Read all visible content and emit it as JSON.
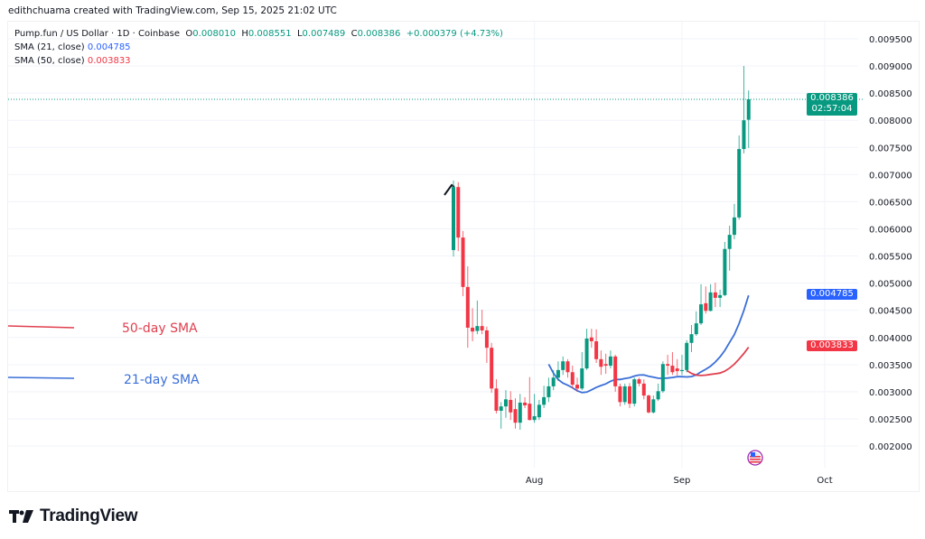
{
  "header": {
    "credit": "edithchuama created with TradingView.com, Sep 15, 2025 21:02 UTC"
  },
  "legend": {
    "symbol": "Pump.fun / US Dollar · 1D · Coinbase",
    "o_label": "O",
    "o": "0.008010",
    "h_label": "H",
    "h": "0.008551",
    "l_label": "L",
    "l": "0.007489",
    "c_label": "C",
    "c": "0.008386",
    "change": "+0.000379 (+4.73%)",
    "sma21_label": "SMA (21, close)",
    "sma21_value": "0.004785",
    "sma50_label": "SMA (50, close)",
    "sma50_value": "0.003833"
  },
  "price_tags": {
    "last": "0.008386",
    "countdown": "02:57:04",
    "sma21": "0.004785",
    "sma50": "0.003833"
  },
  "annotations": {
    "sma50": "50-day SMA",
    "sma21": "21-day SMA"
  },
  "logo": {
    "text": "TradingView"
  },
  "colors": {
    "up": "#089981",
    "down": "#f23645",
    "sma21": "#3b6fd8",
    "sma50": "#e0404f",
    "grid": "#f0f3fa",
    "axis_text": "#131722"
  },
  "chart_data": {
    "type": "candlestick",
    "title": "Pump.fun / US Dollar · 1D · Coinbase",
    "ylim": [
      0.0017,
      0.0099
    ],
    "y_ticks": [
      "0.009500",
      "0.009000",
      "0.008500",
      "0.008000",
      "0.007500",
      "0.007000",
      "0.006500",
      "0.006000",
      "0.005500",
      "0.005000",
      "0.004500",
      "0.004000",
      "0.003500",
      "0.003000",
      "0.002500",
      "0.002000"
    ],
    "x_ticks": [
      {
        "label": "Aug",
        "day": 17
      },
      {
        "label": "Sep",
        "day": 48
      },
      {
        "label": "Oct",
        "day": 78
      }
    ],
    "first_date": "2025-07-15",
    "last_date": "2025-09-15",
    "sma_periods": [
      21,
      50
    ],
    "ohlc": [
      [
        0.00561,
        0.00689,
        0.00549,
        0.00677
      ],
      [
        0.00677,
        0.00686,
        0.00559,
        0.00584
      ],
      [
        0.00584,
        0.00596,
        0.00476,
        0.00493
      ],
      [
        0.00493,
        0.00531,
        0.00381,
        0.00418
      ],
      [
        0.00418,
        0.00454,
        0.00393,
        0.00411
      ],
      [
        0.00412,
        0.00468,
        0.00406,
        0.00421
      ],
      [
        0.00421,
        0.00451,
        0.00406,
        0.00413
      ],
      [
        0.00413,
        0.0042,
        0.00353,
        0.00381
      ],
      [
        0.00381,
        0.0039,
        0.00298,
        0.00306
      ],
      [
        0.00306,
        0.00323,
        0.0026,
        0.00265
      ],
      [
        0.00265,
        0.00281,
        0.00232,
        0.00273
      ],
      [
        0.00273,
        0.00303,
        0.00252,
        0.00286
      ],
      [
        0.00285,
        0.00301,
        0.00248,
        0.00262
      ],
      [
        0.00268,
        0.00288,
        0.00232,
        0.00243
      ],
      [
        0.00243,
        0.00296,
        0.0023,
        0.0028
      ],
      [
        0.0028,
        0.0029,
        0.0027,
        0.00275
      ],
      [
        0.00278,
        0.00327,
        0.00247,
        0.00248
      ],
      [
        0.00248,
        0.00296,
        0.00243,
        0.00255
      ],
      [
        0.00253,
        0.00285,
        0.00248,
        0.00276
      ],
      [
        0.00276,
        0.00311,
        0.0027,
        0.0029
      ],
      [
        0.0029,
        0.00326,
        0.00281,
        0.0031
      ],
      [
        0.0031,
        0.0034,
        0.00303,
        0.00326
      ],
      [
        0.00326,
        0.00356,
        0.0032,
        0.0034
      ],
      [
        0.0034,
        0.00365,
        0.00331,
        0.00356
      ],
      [
        0.00356,
        0.0036,
        0.00326,
        0.00336
      ],
      [
        0.00336,
        0.00348,
        0.00306,
        0.00313
      ],
      [
        0.00313,
        0.00326,
        0.003,
        0.00306
      ],
      [
        0.00306,
        0.00373,
        0.00303,
        0.00343
      ],
      [
        0.00343,
        0.00416,
        0.0034,
        0.00398
      ],
      [
        0.004,
        0.00416,
        0.00381,
        0.00393
      ],
      [
        0.00393,
        0.00415,
        0.00353,
        0.0036
      ],
      [
        0.0036,
        0.00376,
        0.00331,
        0.00346
      ],
      [
        0.00351,
        0.0037,
        0.00333,
        0.00348
      ],
      [
        0.00348,
        0.00376,
        0.00343,
        0.00365
      ],
      [
        0.00365,
        0.00368,
        0.003,
        0.0031
      ],
      [
        0.0031,
        0.00315,
        0.00273,
        0.00281
      ],
      [
        0.00281,
        0.00315,
        0.00276,
        0.0031
      ],
      [
        0.0031,
        0.00316,
        0.0027,
        0.00278
      ],
      [
        0.00278,
        0.00326,
        0.00273,
        0.00323
      ],
      [
        0.00323,
        0.00326,
        0.0031,
        0.00315
      ],
      [
        0.00315,
        0.00323,
        0.00286,
        0.00293
      ],
      [
        0.00293,
        0.00295,
        0.0026,
        0.00262
      ],
      [
        0.00262,
        0.00293,
        0.0026,
        0.00286
      ],
      [
        0.00286,
        0.00315,
        0.00283,
        0.00301
      ],
      [
        0.00301,
        0.00356,
        0.00298,
        0.00351
      ],
      [
        0.00351,
        0.00368,
        0.00331,
        0.00348
      ],
      [
        0.00348,
        0.00373,
        0.00331,
        0.00336
      ],
      [
        0.00343,
        0.0036,
        0.0033,
        0.00338
      ],
      [
        0.00338,
        0.00368,
        0.00331,
        0.0034
      ],
      [
        0.0034,
        0.00395,
        0.00336,
        0.0039
      ],
      [
        0.0039,
        0.00423,
        0.00373,
        0.00406
      ],
      [
        0.00406,
        0.00448,
        0.00403,
        0.00426
      ],
      [
        0.00426,
        0.00498,
        0.00423,
        0.00461
      ],
      [
        0.00463,
        0.00494,
        0.00444,
        0.00449
      ],
      [
        0.00449,
        0.00498,
        0.00448,
        0.00483
      ],
      [
        0.00483,
        0.00501,
        0.00456,
        0.00473
      ],
      [
        0.00473,
        0.00488,
        0.00456,
        0.00478
      ],
      [
        0.00478,
        0.00576,
        0.00476,
        0.00563
      ],
      [
        0.00563,
        0.00606,
        0.00523,
        0.00589
      ],
      [
        0.00589,
        0.00646,
        0.00581,
        0.00621
      ],
      [
        0.00621,
        0.00772,
        0.00617,
        0.00747
      ],
      [
        0.00747,
        0.009,
        0.00739,
        0.008
      ],
      [
        0.00801,
        0.00855,
        0.00749,
        0.008386
      ]
    ]
  }
}
